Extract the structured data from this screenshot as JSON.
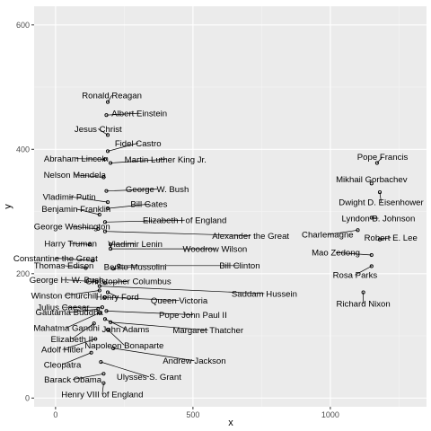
{
  "chart_data": {
    "type": "scatter",
    "title": "",
    "xlabel": "x",
    "ylabel": "y",
    "xlim": [
      -78,
      1350
    ],
    "ylim": [
      -14,
      630
    ],
    "x_ticks": [
      0,
      500,
      1000
    ],
    "y_ticks": [
      0,
      200,
      400,
      600
    ],
    "x_tick_labels": [
      "0",
      "500",
      "1000"
    ],
    "y_tick_labels": [
      "0",
      "200",
      "400",
      "600"
    ],
    "grid": true,
    "legend": "none",
    "colors": {
      "panel": "#ebebeb",
      "grid_major": "#ffffff",
      "grid_minor": "#f5f5f5",
      "point": "#000000",
      "segment": "#000000"
    },
    "points": [
      {
        "label": "Ronald Reagan",
        "x": 190,
        "y": 476,
        "lx": 205,
        "ly": 487
      },
      {
        "label": "Albert Einstein",
        "x": 185,
        "y": 455,
        "lx": 305,
        "ly": 458
      },
      {
        "label": "Jesus Christ",
        "x": 190,
        "y": 423,
        "lx": 155,
        "ly": 433
      },
      {
        "label": "Fidel Castro",
        "x": 190,
        "y": 397,
        "lx": 300,
        "ly": 410
      },
      {
        "label": "Abraham Lincoln",
        "x": 180,
        "y": 384,
        "lx": 75,
        "ly": 385
      },
      {
        "label": "Martin Luther King Jr.",
        "x": 200,
        "y": 378,
        "lx": 400,
        "ly": 384
      },
      {
        "label": "Pope Francis",
        "x": 1170,
        "y": 378,
        "lx": 1190,
        "ly": 388
      },
      {
        "label": "Nelson Mandela",
        "x": 175,
        "y": 355,
        "lx": 70,
        "ly": 359
      },
      {
        "label": "Mikhail Gorbachev",
        "x": 1150,
        "y": 345,
        "lx": 1150,
        "ly": 352
      },
      {
        "label": "George W. Bush",
        "x": 185,
        "y": 333,
        "lx": 370,
        "ly": 336
      },
      {
        "label": "Dwight D. Eisenhower",
        "x": 1180,
        "y": 331,
        "lx": 1185,
        "ly": 315
      },
      {
        "label": "Vladimir Putin",
        "x": 190,
        "y": 315,
        "lx": 50,
        "ly": 324
      },
      {
        "label": "Bill Gates",
        "x": 190,
        "y": 305,
        "lx": 340,
        "ly": 312
      },
      {
        "label": "Benjamin Franklin",
        "x": 160,
        "y": 295,
        "lx": 75,
        "ly": 304
      },
      {
        "label": "Lyndon B. Johnson",
        "x": 1150,
        "y": 290,
        "lx": 1175,
        "ly": 289
      },
      {
        "label": "Elizabeth I of England",
        "x": 180,
        "y": 283,
        "lx": 470,
        "ly": 286
      },
      {
        "label": "George Washington",
        "x": 155,
        "y": 272,
        "lx": 60,
        "ly": 276
      },
      {
        "label": "Alexander the Great",
        "x": 180,
        "y": 268,
        "lx": 710,
        "ly": 261
      },
      {
        "label": "Charlemagne",
        "x": 1100,
        "y": 270,
        "lx": 990,
        "ly": 263
      },
      {
        "label": "Robert E. Lee",
        "x": 1180,
        "y": 255,
        "lx": 1220,
        "ly": 258
      },
      {
        "label": "Harry Truman",
        "x": 125,
        "y": 247,
        "lx": 55,
        "ly": 249
      },
      {
        "label": "Vladimir Lenin",
        "x": 200,
        "y": 247,
        "lx": 290,
        "ly": 248
      },
      {
        "label": "Woodrow Wilson",
        "x": 200,
        "y": 240,
        "lx": 580,
        "ly": 240
      },
      {
        "label": "Mao Zedong",
        "x": 1150,
        "y": 230,
        "lx": 1020,
        "ly": 234
      },
      {
        "label": "Constantine the Great",
        "x": 135,
        "y": 221,
        "lx": 0,
        "ly": 225
      },
      {
        "label": "Thomas Edison",
        "x": 110,
        "y": 209,
        "lx": 30,
        "ly": 213
      },
      {
        "label": "Benito Mussolini",
        "x": 210,
        "y": 208,
        "lx": 290,
        "ly": 211
      },
      {
        "label": "Bill Clinton",
        "x": 230,
        "y": 213,
        "lx": 670,
        "ly": 213
      },
      {
        "label": "Rosa Parks",
        "x": 1150,
        "y": 212,
        "lx": 1090,
        "ly": 198
      },
      {
        "label": "George H. W. Bush",
        "x": 150,
        "y": 187,
        "lx": 40,
        "ly": 190
      },
      {
        "label": "Christopher Columbus",
        "x": 180,
        "y": 185,
        "lx": 265,
        "ly": 188
      },
      {
        "label": "Saddam Hussein",
        "x": 160,
        "y": 180,
        "lx": 760,
        "ly": 168
      },
      {
        "label": "Winston Churchill",
        "x": 160,
        "y": 173,
        "lx": 33,
        "ly": 165
      },
      {
        "label": "Henry Ford",
        "x": 190,
        "y": 170,
        "lx": 225,
        "ly": 163
      },
      {
        "label": "Richard Nixon",
        "x": 1120,
        "y": 170,
        "lx": 1120,
        "ly": 152
      },
      {
        "label": "Queen Victoria",
        "x": 180,
        "y": 162,
        "lx": 450,
        "ly": 157
      },
      {
        "label": "Julius Caesar",
        "x": 170,
        "y": 146,
        "lx": 28,
        "ly": 146
      },
      {
        "label": "Gautama Buddha",
        "x": 155,
        "y": 143,
        "lx": 50,
        "ly": 138
      },
      {
        "label": "Pope John Paul II",
        "x": 185,
        "y": 140,
        "lx": 500,
        "ly": 134
      },
      {
        "label": "Mahatma Gandhi",
        "x": 160,
        "y": 137,
        "lx": 40,
        "ly": 113
      },
      {
        "label": "John Adams",
        "x": 180,
        "y": 127,
        "lx": 255,
        "ly": 111
      },
      {
        "label": "Margaret Thatcher",
        "x": 200,
        "y": 122,
        "lx": 555,
        "ly": 109
      },
      {
        "label": "Elizabeth II",
        "x": 140,
        "y": 120,
        "lx": 60,
        "ly": 95
      },
      {
        "label": "Napoleon Bonaparte",
        "x": 190,
        "y": 110,
        "lx": 250,
        "ly": 85
      },
      {
        "label": "Adolf Hitler",
        "x": 145,
        "y": 95,
        "lx": 25,
        "ly": 78
      },
      {
        "label": "Andrew Jackson",
        "x": 210,
        "y": 80,
        "lx": 505,
        "ly": 60
      },
      {
        "label": "Cleopatra",
        "x": 130,
        "y": 73,
        "lx": 25,
        "ly": 54
      },
      {
        "label": "Ulysses S. Grant",
        "x": 165,
        "y": 58,
        "lx": 340,
        "ly": 34
      },
      {
        "label": "Barack Obama",
        "x": 175,
        "y": 39,
        "lx": 63,
        "ly": 30
      },
      {
        "label": "Henry VIII of England",
        "x": 175,
        "y": 24,
        "lx": 170,
        "ly": 6
      }
    ]
  }
}
